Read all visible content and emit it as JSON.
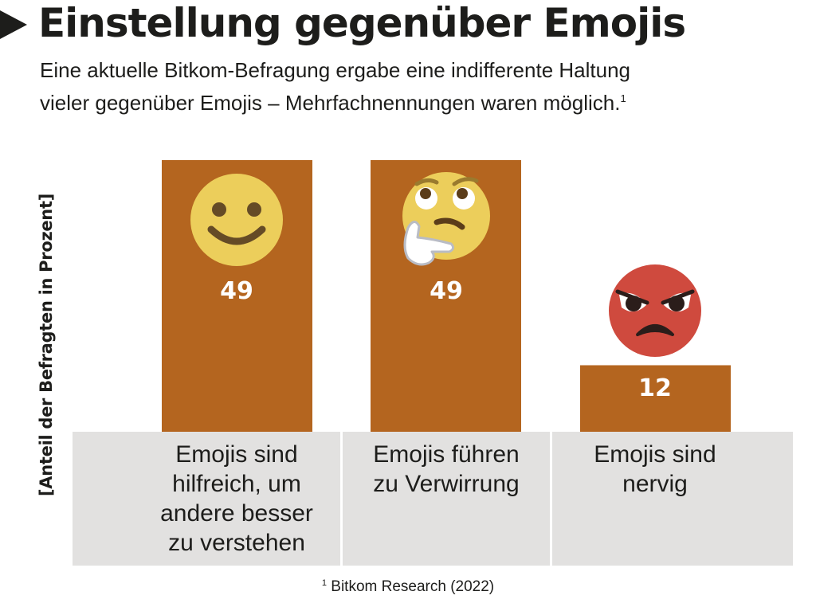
{
  "header": {
    "title": "Einstellung gegenüber Emojis",
    "subtitle_line1": "Eine aktuelle Bitkom-Befragung ergabe eine indifferente Haltung",
    "subtitle_line2": "vieler gegenüber Emojis – Mehrfachnennungen waren möglich.",
    "subtitle_footnote_mark": "1"
  },
  "chart_data": {
    "type": "bar",
    "title": "Einstellung gegenüber Emojis",
    "xlabel": "",
    "ylabel": "[Anteil der Befragten in Prozent]",
    "categories": [
      "Emojis sind hilfreich, um andere besser zu verstehen",
      "Emojis führen zu Verwirrung",
      "Emojis sind nervig"
    ],
    "category_label_lines": [
      [
        "Emojis sind",
        "hilfreich, um",
        "andere besser",
        "zu verstehen"
      ],
      [
        "Emojis führen",
        "zu Verwirrung"
      ],
      [
        "Emojis sind",
        "nervig"
      ]
    ],
    "values": [
      49,
      49,
      12
    ],
    "data_labels": [
      "49",
      "49",
      "12"
    ],
    "icons": [
      "smiling-face-icon",
      "thinking-face-icon",
      "angry-face-icon"
    ],
    "ylim": [
      0,
      49
    ],
    "grid": false,
    "legend": "none",
    "colors": {
      "bar": "#b4651f",
      "label_band": "#e2e1e0",
      "value_text": "#ffffff",
      "smile_face": "#ecce5b",
      "smile_features": "#654b26",
      "angry_face": "#cf4a3e"
    }
  },
  "footnote": {
    "mark": "1",
    "text": "Bitkom Research (2022)"
  }
}
